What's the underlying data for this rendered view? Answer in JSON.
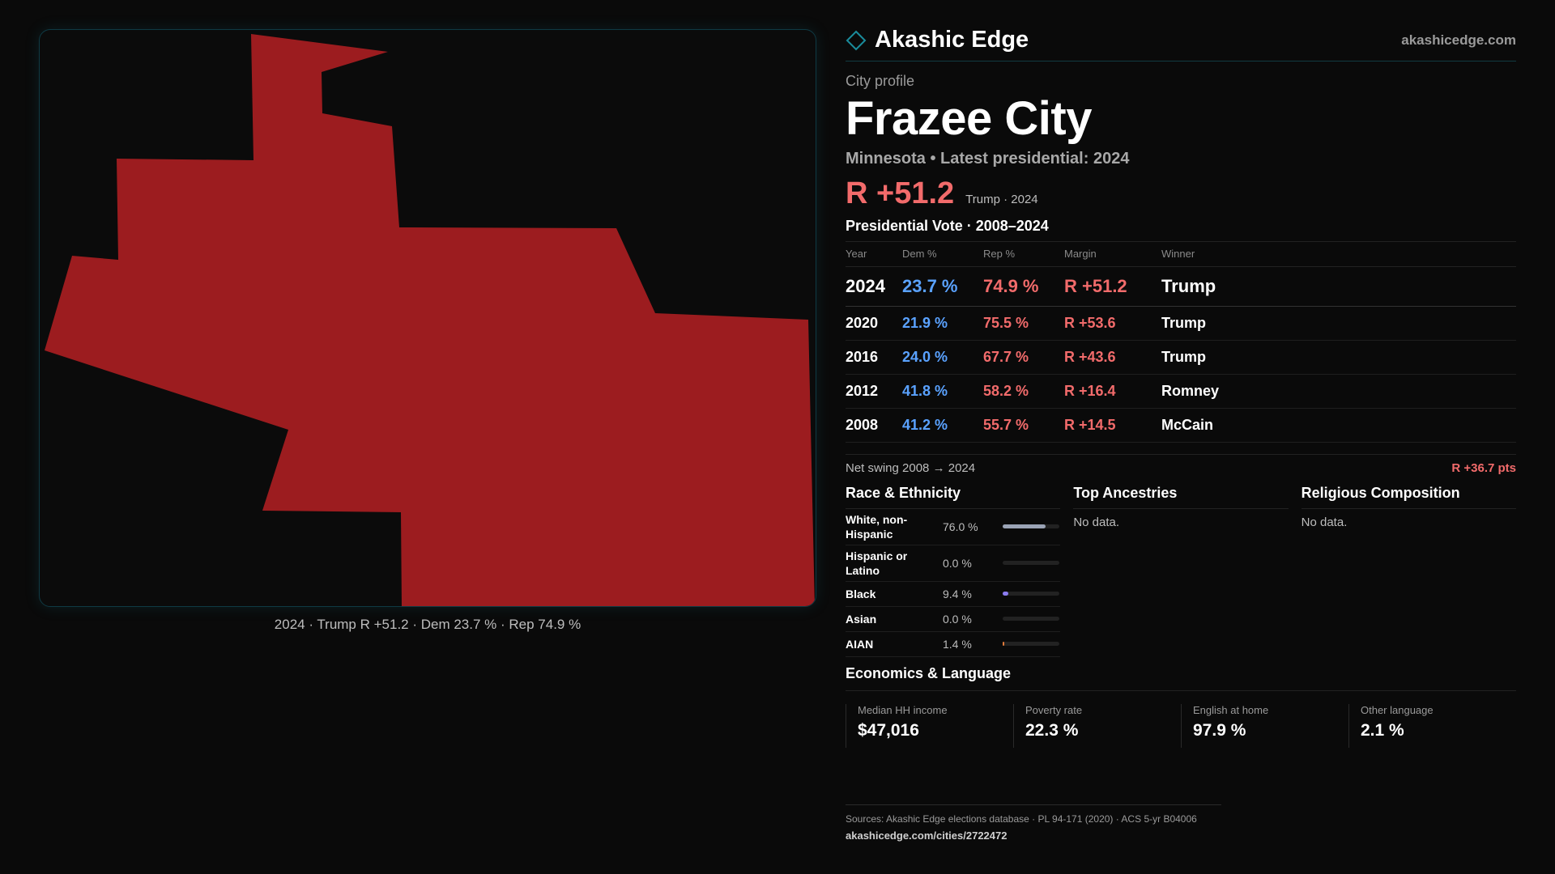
{
  "map": {
    "caption": "2024 · Trump R +51.2 · Dem 23.7 % · Rep 74.9 %",
    "fill_color": "#9c1c1f",
    "border_color": "#0f3a44"
  },
  "brand": {
    "name": "Akashic Edge",
    "url": "akashicedge.com",
    "icon": "diamond-outline-icon",
    "accent": "#1a8c9c"
  },
  "profile": {
    "kicker": "City profile",
    "title": "Frazee City",
    "subtitle": "Minnesota • Latest presidential: 2024",
    "margin": "R +51.2",
    "margin_note": "Trump · 2024"
  },
  "votes": {
    "heading": "Presidential Vote · 2008–2024",
    "columns": [
      "Year",
      "Dem %",
      "Rep %",
      "Margin",
      "Winner"
    ],
    "rows": [
      {
        "year": "2024",
        "dem": "23.7 %",
        "rep": "74.9 %",
        "margin": "R +51.2",
        "winner": "Trump"
      },
      {
        "year": "2020",
        "dem": "21.9 %",
        "rep": "75.5 %",
        "margin": "R +53.6",
        "winner": "Trump"
      },
      {
        "year": "2016",
        "dem": "24.0 %",
        "rep": "67.7 %",
        "margin": "R +43.6",
        "winner": "Trump"
      },
      {
        "year": "2012",
        "dem": "41.8 %",
        "rep": "58.2 %",
        "margin": "R +16.4",
        "winner": "Romney"
      },
      {
        "year": "2008",
        "dem": "41.2 %",
        "rep": "55.7 %",
        "margin": "R +14.5",
        "winner": "McCain"
      }
    ],
    "swing_label": "Net swing 2008 → 2024",
    "swing_value": "R +36.7 pts",
    "colors": {
      "dem": "#5aa2ff",
      "rep": "#f26b6b"
    }
  },
  "race": {
    "heading": "Race & Ethnicity",
    "rows": [
      {
        "label": "White, non-Hispanic",
        "value": "76.0 %",
        "fraction": 0.76,
        "color": "#9aa3b5"
      },
      {
        "label": "Hispanic or Latino",
        "value": "0.0 %",
        "fraction": 0.0,
        "color": "#d9a441"
      },
      {
        "label": "Black",
        "value": "9.4 %",
        "fraction": 0.094,
        "color": "#8b7cf0"
      },
      {
        "label": "Asian",
        "value": "0.0 %",
        "fraction": 0.0,
        "color": "#4fb3a6"
      },
      {
        "label": "AIAN",
        "value": "1.4 %",
        "fraction": 0.014,
        "color": "#e07a3a"
      }
    ]
  },
  "ancestries": {
    "heading": "Top Ancestries",
    "empty": "No data."
  },
  "religion": {
    "heading": "Religious Composition",
    "empty": "No data."
  },
  "economics": {
    "heading": "Economics & Language",
    "cells": [
      {
        "label": "Median HH income",
        "value": "$47,016"
      },
      {
        "label": "Poverty rate",
        "value": "22.3 %"
      },
      {
        "label": "English at home",
        "value": "97.9 %"
      },
      {
        "label": "Other language",
        "value": "2.1 %"
      }
    ]
  },
  "footer": {
    "sources": "Sources: Akashic Edge elections database · PL 94-171 (2020) · ACS 5-yr B04006",
    "url": "akashicedge.com/cities/2722472"
  }
}
